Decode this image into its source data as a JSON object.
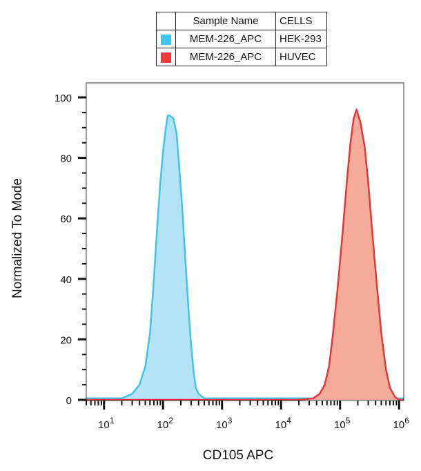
{
  "legend": {
    "header": {
      "sample": "Sample Name",
      "cells": "CELLS"
    },
    "rows": [
      {
        "sample": "MEM-226_APC",
        "cells": "HEK-293",
        "color": "#41c3ec"
      },
      {
        "sample": "MEM-226_APC",
        "cells": "HUVEC",
        "color": "#f0393b"
      }
    ]
  },
  "chart_data": {
    "type": "area",
    "xlabel": "CD105 APC",
    "ylabel": "Normalized To Mode",
    "x_scale": "log",
    "xlim": [
      5,
      1200000
    ],
    "ylim": [
      0,
      100
    ],
    "yticks": [
      0,
      20,
      40,
      60,
      80,
      100
    ],
    "xtick_labels": [
      {
        "base": "10",
        "exp": "1"
      },
      {
        "base": "10",
        "exp": "2"
      },
      {
        "base": "10",
        "exp": "3"
      },
      {
        "base": "10",
        "exp": "4"
      },
      {
        "base": "10",
        "exp": "5"
      },
      {
        "base": "10",
        "exp": "6"
      }
    ],
    "grid": false,
    "series": [
      {
        "name": "HEK-293",
        "line_color": "#41c3ec",
        "fill_color": "#b4e3f8",
        "points": [
          [
            5,
            0.5
          ],
          [
            10,
            0.5
          ],
          [
            20,
            0.5
          ],
          [
            30,
            2
          ],
          [
            40,
            5
          ],
          [
            50,
            11
          ],
          [
            60,
            22
          ],
          [
            70,
            40
          ],
          [
            80,
            58
          ],
          [
            90,
            72
          ],
          [
            100,
            82
          ],
          [
            110,
            89
          ],
          [
            120,
            94
          ],
          [
            130,
            94
          ],
          [
            150,
            93
          ],
          [
            170,
            88
          ],
          [
            190,
            76
          ],
          [
            210,
            64
          ],
          [
            240,
            46
          ],
          [
            270,
            30
          ],
          [
            300,
            18
          ],
          [
            330,
            9
          ],
          [
            360,
            4
          ],
          [
            400,
            2
          ],
          [
            500,
            0.5
          ],
          [
            1000,
            0.5
          ],
          [
            10000,
            0.5
          ],
          [
            100000,
            0.5
          ],
          [
            1200000,
            0.5
          ]
        ]
      },
      {
        "name": "HUVEC",
        "line_color": "#e2383b",
        "fill_color": "#f6ab99",
        "points": [
          [
            5,
            0
          ],
          [
            1000,
            0
          ],
          [
            20000,
            0
          ],
          [
            35000,
            0.5
          ],
          [
            45000,
            2
          ],
          [
            55000,
            5
          ],
          [
            65000,
            11
          ],
          [
            75000,
            21
          ],
          [
            90000,
            36
          ],
          [
            110000,
            55
          ],
          [
            130000,
            72
          ],
          [
            150000,
            85
          ],
          [
            170000,
            93
          ],
          [
            190000,
            96
          ],
          [
            220000,
            92
          ],
          [
            260000,
            84
          ],
          [
            300000,
            72
          ],
          [
            350000,
            56
          ],
          [
            420000,
            38
          ],
          [
            500000,
            22
          ],
          [
            600000,
            10
          ],
          [
            700000,
            4
          ],
          [
            850000,
            1
          ],
          [
            1000000,
            0
          ],
          [
            1200000,
            0
          ]
        ]
      }
    ]
  }
}
